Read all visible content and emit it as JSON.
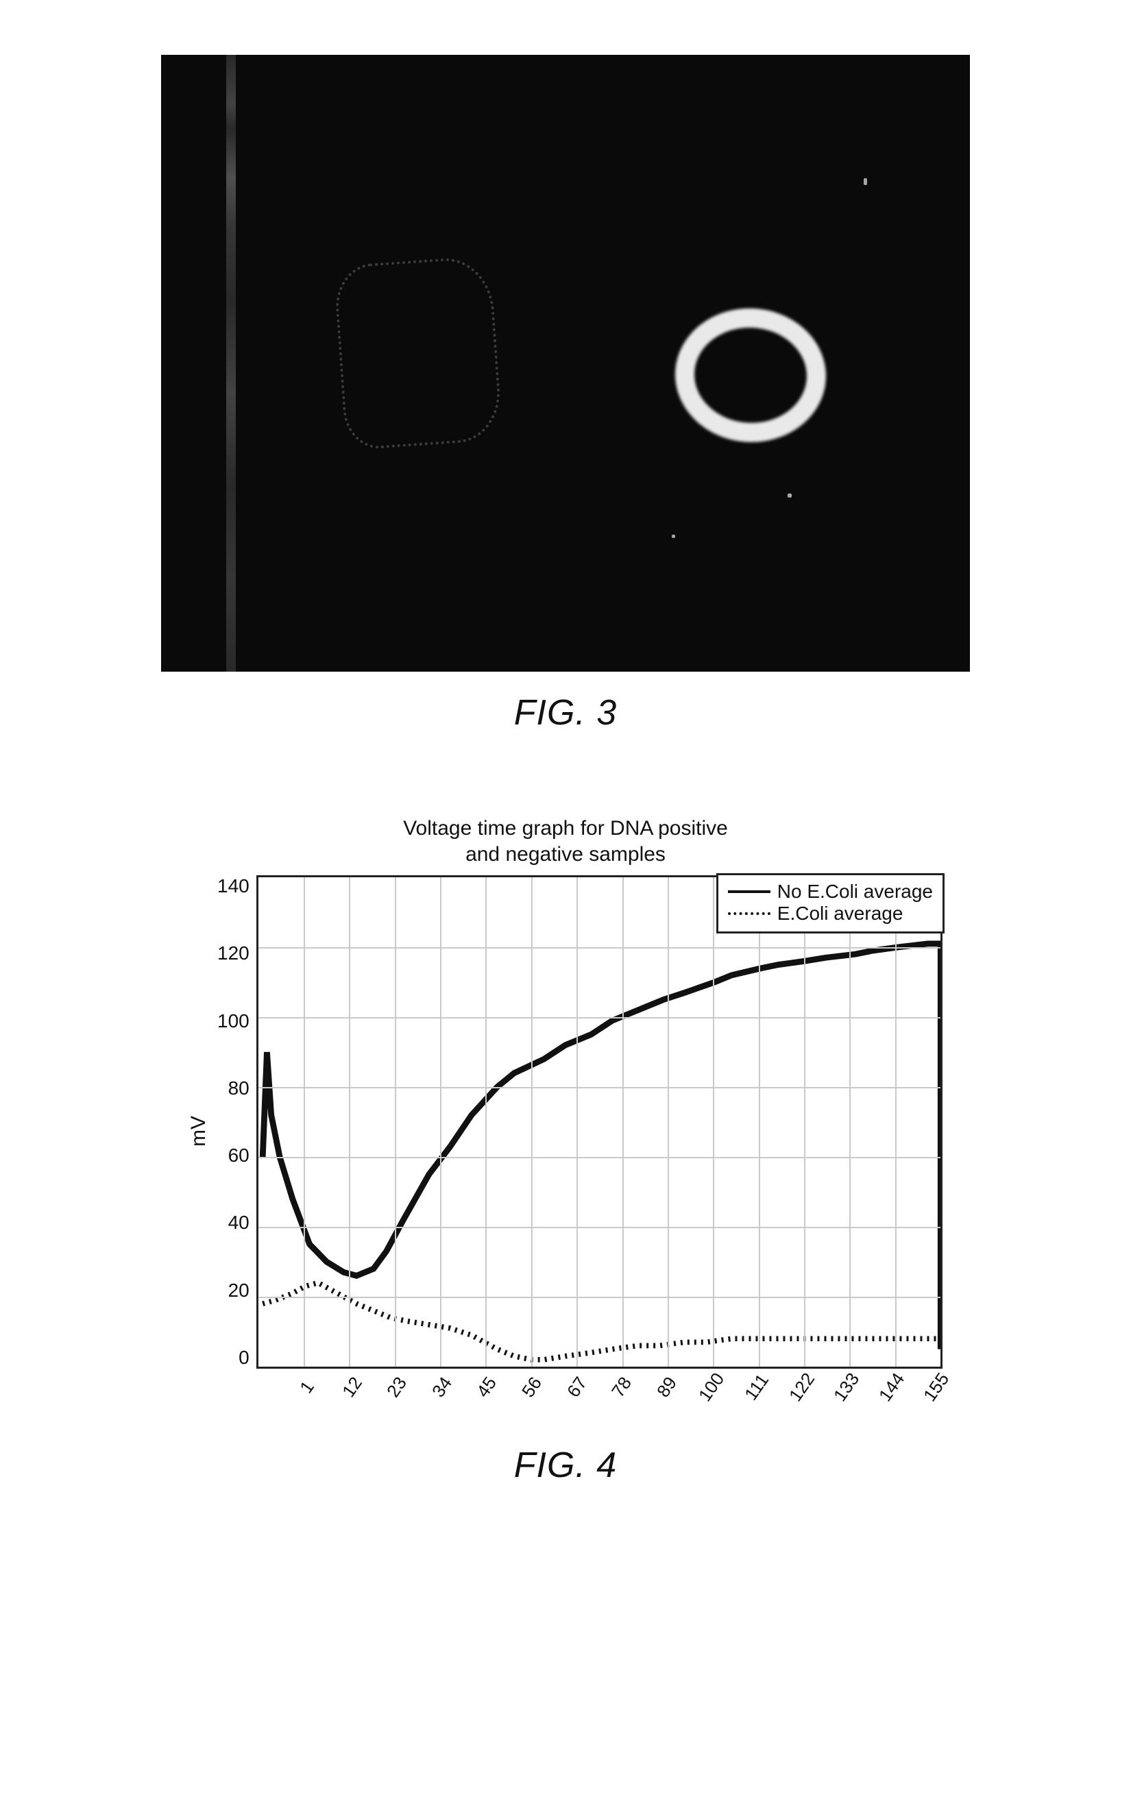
{
  "fig3": {
    "caption": "FIG. 3",
    "background_color": "#0a0a0a"
  },
  "fig4": {
    "caption": "FIG. 4",
    "title_line1": "Voltage time graph for DNA positive",
    "title_line2": "and negative samples",
    "ylabel": "mV",
    "legend": {
      "series1": "No E.Coli average",
      "series2": "E.Coli average"
    },
    "y": {
      "min": 0,
      "max": 140,
      "step": 20,
      "ticks": [
        "140",
        "120",
        "100",
        "80",
        "60",
        "40",
        "20",
        "0"
      ]
    },
    "x": {
      "ticks": [
        "1",
        "12",
        "23",
        "34",
        "45",
        "56",
        "67",
        "78",
        "89",
        "100",
        "111",
        "122",
        "133",
        "144",
        "155"
      ]
    },
    "series_no_ecoli": {
      "points": [
        [
          1,
          60
        ],
        [
          2,
          90
        ],
        [
          3,
          72
        ],
        [
          5,
          60
        ],
        [
          8,
          48
        ],
        [
          12,
          35
        ],
        [
          16,
          30
        ],
        [
          20,
          27
        ],
        [
          23,
          26
        ],
        [
          27,
          28
        ],
        [
          30,
          33
        ],
        [
          34,
          42
        ],
        [
          40,
          55
        ],
        [
          45,
          63
        ],
        [
          50,
          72
        ],
        [
          56,
          80
        ],
        [
          60,
          84
        ],
        [
          67,
          88
        ],
        [
          72,
          92
        ],
        [
          78,
          95
        ],
        [
          83,
          99
        ],
        [
          89,
          102
        ],
        [
          95,
          105
        ],
        [
          100,
          107
        ],
        [
          107,
          110
        ],
        [
          111,
          112
        ],
        [
          118,
          114
        ],
        [
          122,
          115
        ],
        [
          128,
          116
        ],
        [
          133,
          117
        ],
        [
          140,
          118
        ],
        [
          144,
          119
        ],
        [
          150,
          120
        ],
        [
          157,
          121
        ],
        [
          160,
          121
        ],
        [
          160,
          5
        ]
      ],
      "color": "#111111",
      "width": 4,
      "dash": "none"
    },
    "series_ecoli": {
      "points": [
        [
          1,
          18
        ],
        [
          4,
          19
        ],
        [
          8,
          21
        ],
        [
          11,
          23
        ],
        [
          14,
          24
        ],
        [
          17,
          22
        ],
        [
          20,
          20
        ],
        [
          23,
          18
        ],
        [
          27,
          16
        ],
        [
          31,
          14
        ],
        [
          35,
          13
        ],
        [
          40,
          12
        ],
        [
          45,
          11
        ],
        [
          50,
          9
        ],
        [
          56,
          5
        ],
        [
          60,
          3
        ],
        [
          64,
          2
        ],
        [
          67,
          2
        ],
        [
          72,
          3
        ],
        [
          78,
          4
        ],
        [
          83,
          5
        ],
        [
          89,
          6
        ],
        [
          94,
          6
        ],
        [
          100,
          7
        ],
        [
          105,
          7
        ],
        [
          111,
          8
        ],
        [
          118,
          8
        ],
        [
          122,
          8
        ],
        [
          128,
          8
        ],
        [
          133,
          8
        ],
        [
          140,
          8
        ],
        [
          144,
          8
        ],
        [
          150,
          8
        ],
        [
          155,
          8
        ],
        [
          160,
          8
        ]
      ],
      "color": "#111111",
      "width": 3.5,
      "dash": "3 7"
    },
    "grid_color": "#c9c9c9",
    "background_color": "#ffffff",
    "x_grid_count": 15
  }
}
